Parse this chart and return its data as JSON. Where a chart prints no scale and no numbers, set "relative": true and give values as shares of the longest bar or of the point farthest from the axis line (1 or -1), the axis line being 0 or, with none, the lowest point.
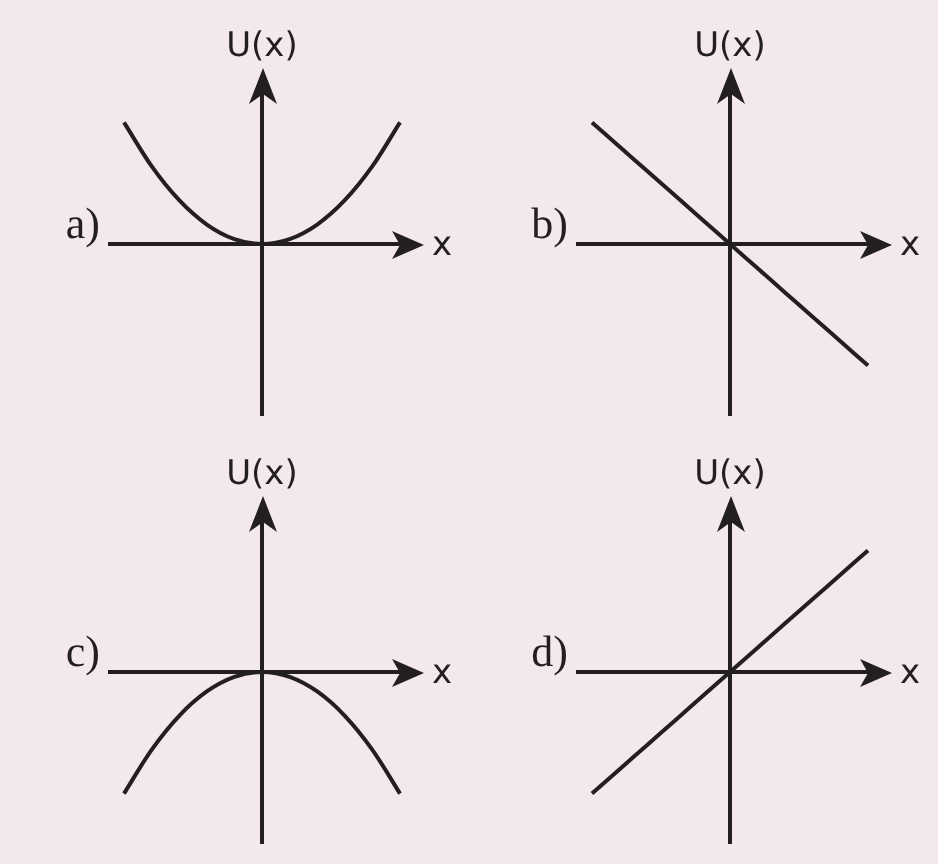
{
  "chart_data": [
    {
      "type": "line",
      "title": "a)",
      "xlabel": "x",
      "ylabel": "U(x)",
      "relative": true,
      "categories": [
        null,
        null,
        null,
        null,
        null,
        null,
        null,
        null,
        null,
        null,
        null
      ],
      "series": [
        {
          "color": "#231f20",
          "values": [
            1,
            0.64,
            0.36,
            0.16,
            0.04,
            0,
            0.04,
            0.16,
            0.36,
            0.64,
            1
          ]
        }
      ]
    },
    {
      "type": "line",
      "title": "b)",
      "xlabel": "x",
      "ylabel": "U(x)",
      "relative": true,
      "categories": [
        null,
        null,
        null,
        null,
        null,
        null,
        null,
        null,
        null,
        null,
        null
      ],
      "series": [
        {
          "color": "#231f20",
          "values": [
            1,
            0.8,
            0.6,
            0.4,
            0.2,
            0,
            -0.2,
            -0.4,
            -0.6,
            -0.8,
            -1
          ]
        }
      ]
    },
    {
      "type": "line",
      "title": "c)",
      "xlabel": "x",
      "ylabel": "U(x)",
      "relative": true,
      "categories": [
        null,
        null,
        null,
        null,
        null,
        null,
        null,
        null,
        null,
        null,
        null
      ],
      "series": [
        {
          "color": "#231f20",
          "values": [
            -1,
            -0.64,
            -0.36,
            -0.16,
            -0.04,
            0,
            -0.04,
            -0.16,
            -0.36,
            -0.64,
            -1
          ]
        }
      ]
    },
    {
      "type": "line",
      "title": "d)",
      "xlabel": "x",
      "ylabel": "U(x)",
      "relative": true,
      "categories": [
        null,
        null,
        null,
        null,
        null,
        null,
        null,
        null,
        null,
        null,
        null
      ],
      "series": [
        {
          "color": "#231f20",
          "values": [
            -1,
            -0.8,
            -0.6,
            -0.4,
            -0.2,
            0,
            0.2,
            0.4,
            0.6,
            0.8,
            1
          ]
        }
      ]
    }
  ]
}
